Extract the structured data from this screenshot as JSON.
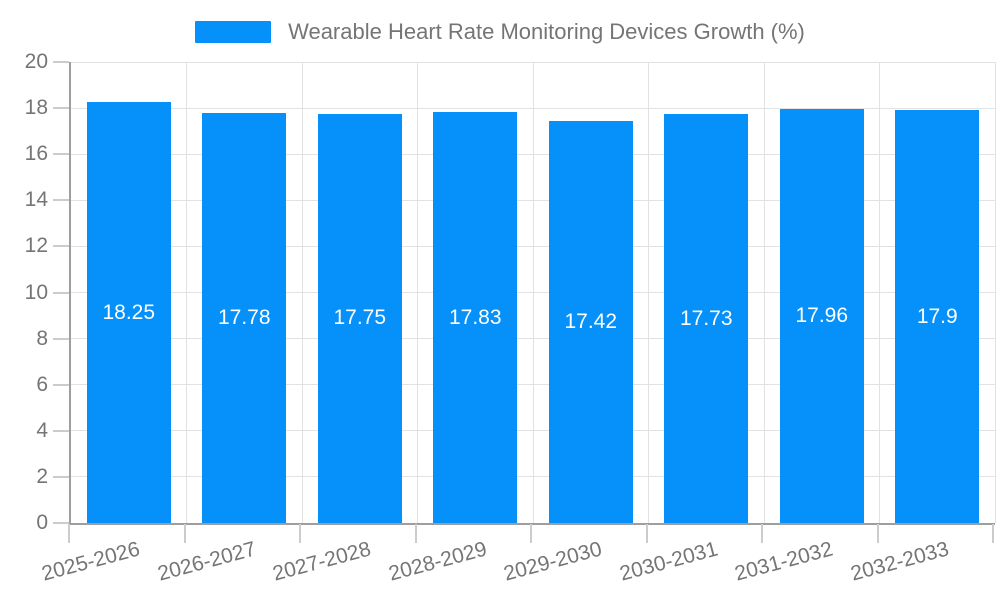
{
  "chart_data": {
    "type": "bar",
    "title": "Wearable Heart Rate Monitoring Devices Growth (%)",
    "categories": [
      "2025-2026",
      "2026-2027",
      "2027-2028",
      "2028-2029",
      "2029-2030",
      "2030-2031",
      "2031-2032",
      "2032-2033"
    ],
    "values": [
      18.25,
      17.78,
      17.75,
      17.83,
      17.42,
      17.73,
      17.96,
      17.9
    ],
    "value_labels": [
      "18.25",
      "17.78",
      "17.75",
      "17.83",
      "17.42",
      "17.73",
      "17.96",
      "17.9"
    ],
    "xlabel": "",
    "ylabel": "",
    "ylim": [
      0,
      20
    ],
    "yticks": [
      0,
      2,
      4,
      6,
      8,
      10,
      12,
      14,
      16,
      18,
      20
    ],
    "grid": true,
    "legend_position": "top",
    "x_label_rotation_deg": -15,
    "colors": {
      "bar": "#0590fa",
      "bar_value_text": "#ffffff",
      "axis_text": "#757575",
      "grid_line": "#e2e2e2",
      "axis_line": "#9e9e9e",
      "tick": "#cccccc",
      "background": "#ffffff"
    }
  }
}
